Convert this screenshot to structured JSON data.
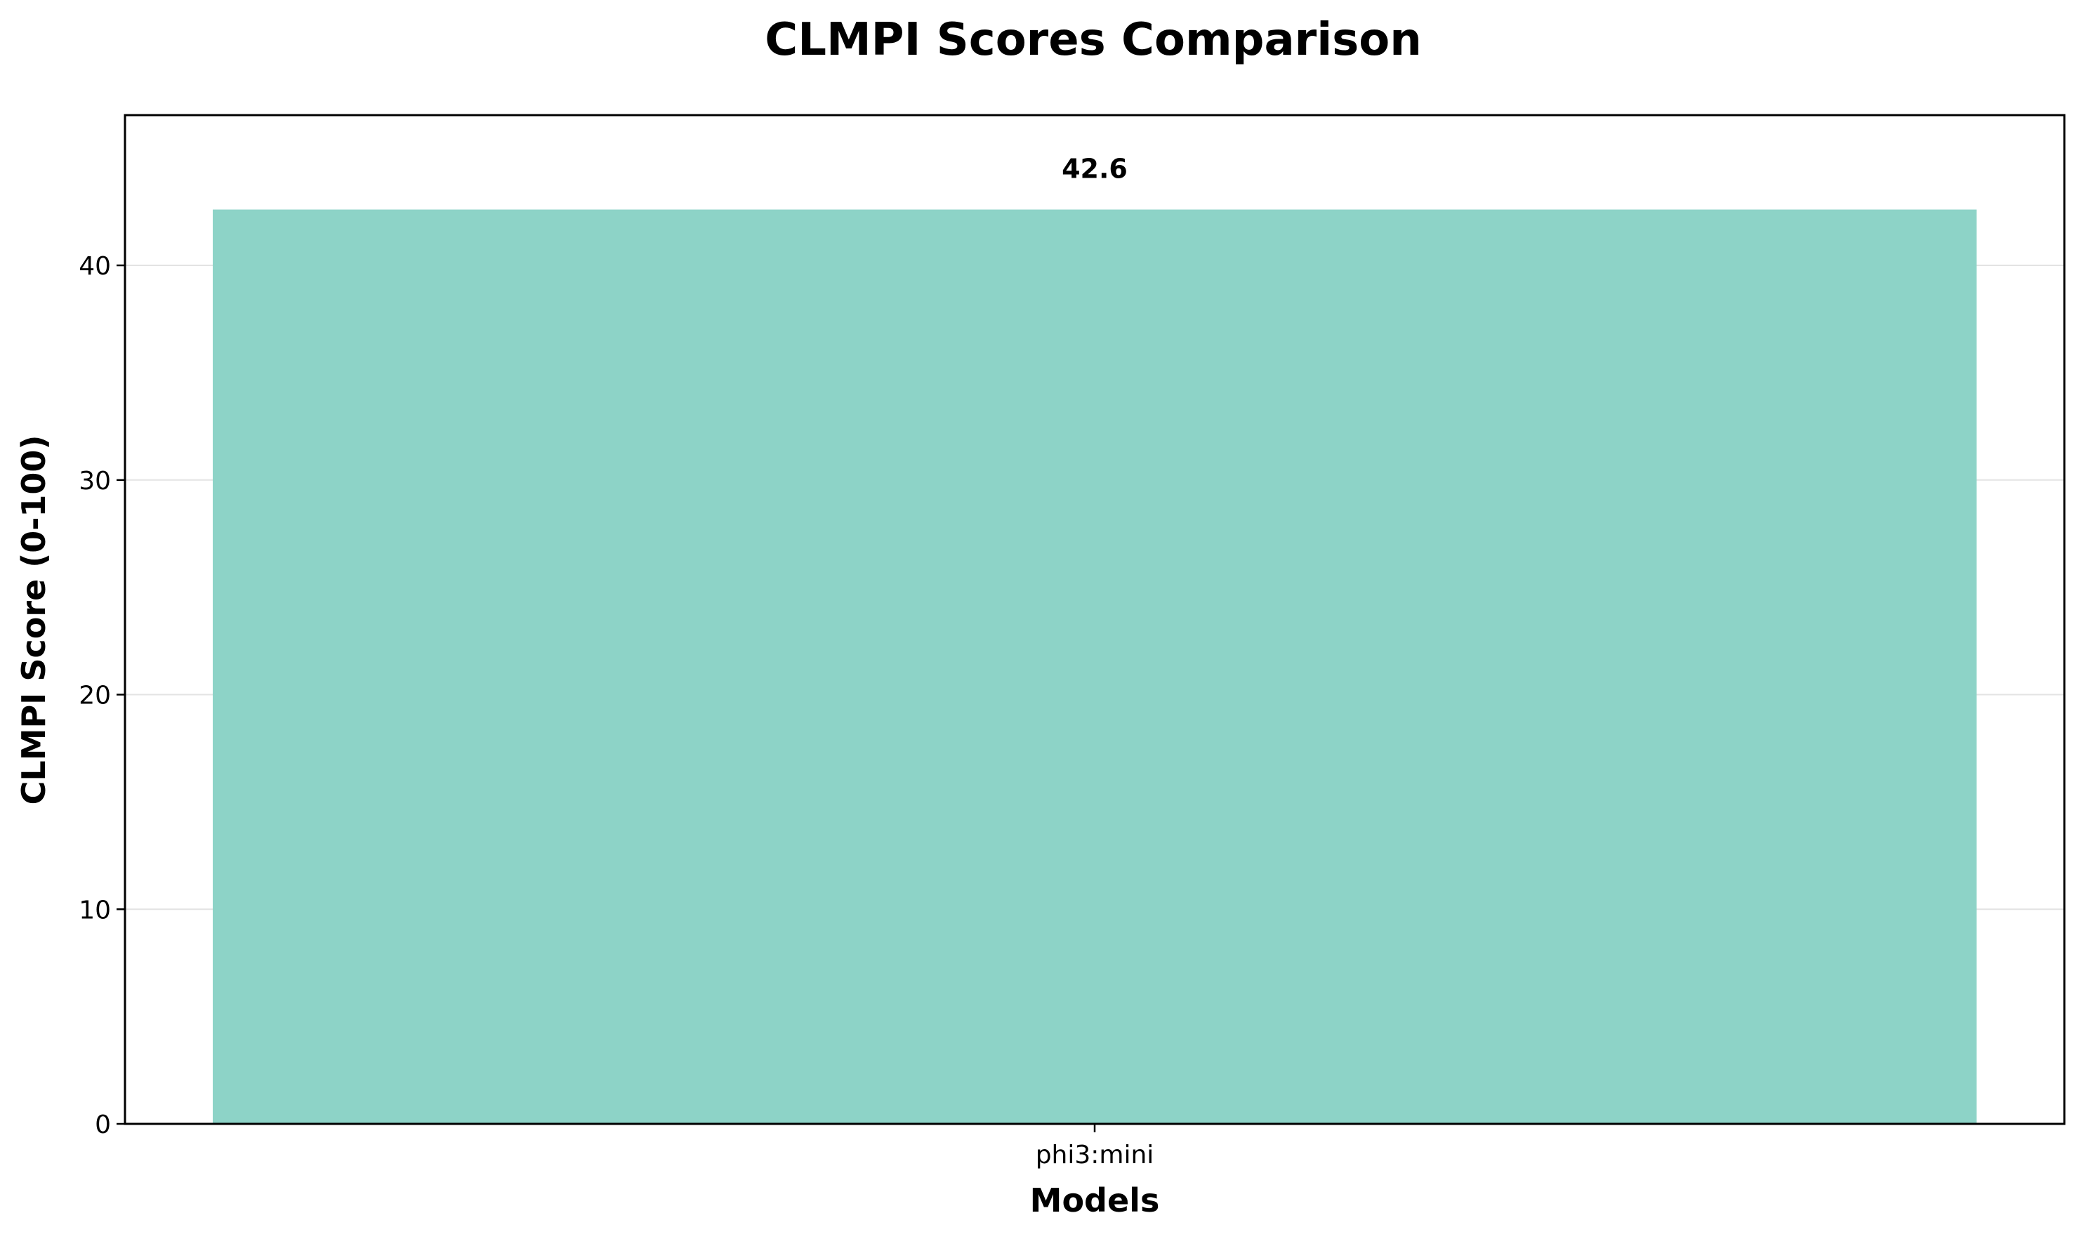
{
  "chart_data": {
    "type": "bar",
    "title": "CLMPI Scores Comparison",
    "xlabel": "Models",
    "ylabel": "CLMPI Score (0-100)",
    "categories": [
      "phi3:mini"
    ],
    "values": [
      42.6
    ],
    "data_labels": [
      "42.6"
    ],
    "ylim": [
      0,
      47
    ],
    "yticks": [
      0,
      10,
      20,
      30,
      40
    ],
    "grid": "y",
    "legend": "none",
    "bar_color": "#8dd3c7"
  }
}
